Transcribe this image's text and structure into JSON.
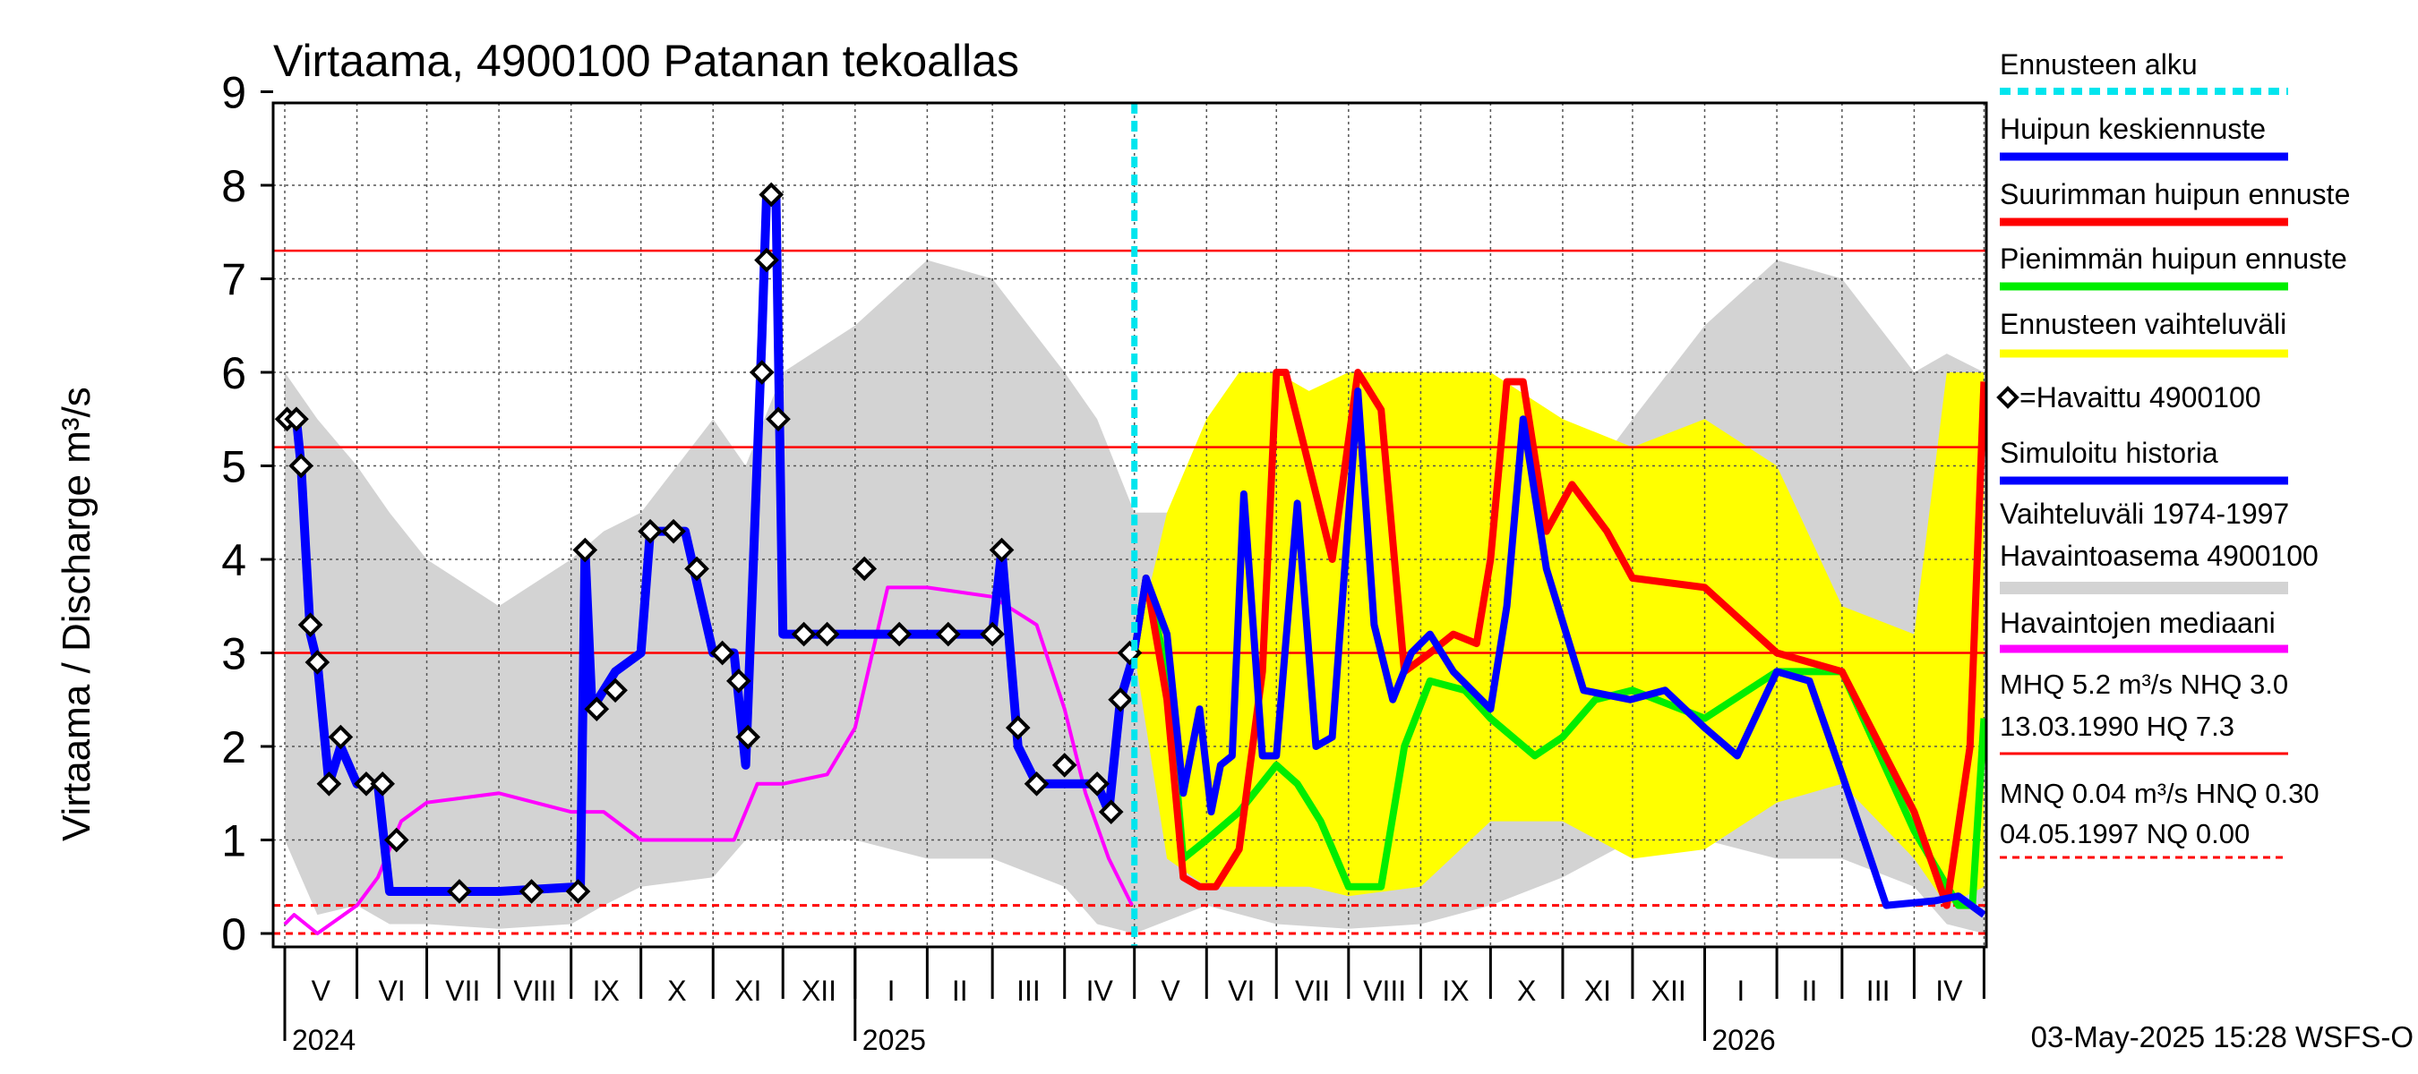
{
  "chart_data": {
    "type": "line",
    "title": "Virtaama, 4900100 Patanan tekoallas",
    "ylabel": "Virtaama / Discharge    m³/s",
    "ylim": [
      0,
      9
    ],
    "yticks": [
      "0",
      "1",
      "2",
      "3",
      "4",
      "5",
      "6",
      "7",
      "8",
      "9"
    ],
    "months": [
      "V",
      "VI",
      "VII",
      "VIII",
      "IX",
      "X",
      "XI",
      "XII",
      "I",
      "II",
      "III",
      "IV",
      "V",
      "VI",
      "VII",
      "VIII",
      "IX",
      "X",
      "XI",
      "XII",
      "I",
      "II",
      "III",
      "IV"
    ],
    "years": [
      "2024",
      "2025",
      "2026"
    ],
    "footer": "03-May-2025 15:28 WSFS-O",
    "forecast_start": "2025-05-01",
    "reference_lines": [
      {
        "name": "MHQ",
        "value": 5.2,
        "style": "solid"
      },
      {
        "name": "NHQ",
        "value": 3.0,
        "style": "solid"
      },
      {
        "name": "HQ",
        "value": 7.3,
        "style": "solid"
      },
      {
        "name": "HNQ",
        "value": 0.3,
        "style": "dashed"
      },
      {
        "name": "NQ",
        "value": 0.0,
        "style": "dashed"
      }
    ],
    "legend": [
      {
        "label": "Ennusteen alku",
        "color": "#00e5ee",
        "style": "dashed"
      },
      {
        "label": "Huipun keskiennuste",
        "color": "#0000ff",
        "style": "solid"
      },
      {
        "label": "Suurimman huipun ennuste",
        "color": "#ff0000",
        "style": "solid"
      },
      {
        "label": "Pienimmän huipun ennuste",
        "color": "#00ee00",
        "style": "solid"
      },
      {
        "label": "Ennusteen vaihteluväli",
        "color": "#ffff00",
        "style": "solid"
      },
      {
        "label": "=Havaittu 4900100",
        "color": "#000000",
        "style": "marker"
      },
      {
        "label": "Simuloitu historia",
        "color": "#0000ff",
        "style": "solid"
      },
      {
        "label": "Vaihteluväli 1974-1997",
        "color": "#d3d3d3",
        "style": "text"
      },
      {
        "label": " Havaintoasema 4900100",
        "color": "#d3d3d3",
        "style": "band"
      },
      {
        "label": "Havaintojen mediaani",
        "color": "#ff00ff",
        "style": "solid"
      }
    ],
    "stats_lines": [
      "MHQ  5.2 m³/s NHQ  3.0",
      "13.03.1990 HQ  7.3",
      "MNQ 0.04 m³/s HNQ 0.30",
      "04.05.1997 NQ 0.00"
    ],
    "series": [
      {
        "name": "Simuloitu historia",
        "color": "#0000ff",
        "x": [
          "2024-05-01",
          "2024-05-06",
          "2024-05-08",
          "2024-05-10",
          "2024-05-12",
          "2024-05-15",
          "2024-05-20",
          "2024-05-25",
          "2024-06-01",
          "2024-06-10",
          "2024-06-15",
          "2024-07-01",
          "2024-08-01",
          "2024-09-05",
          "2024-09-07",
          "2024-09-10",
          "2024-09-20",
          "2024-10-01",
          "2024-10-05",
          "2024-10-20",
          "2024-11-01",
          "2024-11-10",
          "2024-11-15",
          "2024-11-22",
          "2024-11-24",
          "2024-11-28",
          "2024-12-01",
          "2024-12-15",
          "2025-01-01",
          "2025-01-15",
          "2025-02-01",
          "2025-03-01",
          "2025-03-05",
          "2025-03-12",
          "2025-03-20",
          "2025-04-01",
          "2025-04-15",
          "2025-04-20",
          "2025-04-25",
          "2025-05-01"
        ],
        "y": [
          5.5,
          5.5,
          5.0,
          4.1,
          3.2,
          2.9,
          1.6,
          2.0,
          1.6,
          1.6,
          0.45,
          0.45,
          0.45,
          0.5,
          4.1,
          2.4,
          2.8,
          3.0,
          4.3,
          4.3,
          3.0,
          3.0,
          1.8,
          6.4,
          7.9,
          7.9,
          3.2,
          3.2,
          3.2,
          3.2,
          3.2,
          3.2,
          4.1,
          2.0,
          1.6,
          1.6,
          1.6,
          1.3,
          2.5,
          3.0
        ]
      },
      {
        "name": "Havaittu 4900100",
        "color": "#000000",
        "x": [
          "2024-05-02",
          "2024-05-06",
          "2024-05-08",
          "2024-05-12",
          "2024-05-15",
          "2024-05-20",
          "2024-05-25",
          "2024-06-05",
          "2024-06-12",
          "2024-06-18",
          "2024-07-15",
          "2024-08-15",
          "2024-09-04",
          "2024-09-07",
          "2024-09-12",
          "2024-09-20",
          "2024-10-05",
          "2024-10-15",
          "2024-10-25",
          "2024-11-05",
          "2024-11-12",
          "2024-11-16",
          "2024-11-22",
          "2024-11-24",
          "2024-11-26",
          "2024-11-29",
          "2024-12-10",
          "2024-12-20",
          "2025-01-05",
          "2025-01-20",
          "2025-02-10",
          "2025-03-01",
          "2025-03-05",
          "2025-03-12",
          "2025-03-20",
          "2025-04-01",
          "2025-04-15",
          "2025-04-21",
          "2025-04-25",
          "2025-04-29"
        ],
        "y": [
          5.5,
          5.5,
          5.0,
          3.3,
          2.9,
          1.6,
          2.1,
          1.6,
          1.6,
          1.0,
          0.45,
          0.45,
          0.45,
          4.1,
          2.4,
          2.6,
          4.3,
          4.3,
          3.9,
          3.0,
          2.7,
          2.1,
          6.0,
          7.2,
          7.9,
          5.5,
          3.2,
          3.2,
          3.9,
          3.2,
          3.2,
          3.2,
          4.1,
          2.2,
          1.6,
          1.8,
          1.6,
          1.3,
          2.5,
          3.0
        ]
      },
      {
        "name": "Havaintojen mediaani",
        "color": "#ff00ff",
        "x": [
          "2024-05-01",
          "2024-05-05",
          "2024-05-15",
          "2024-06-01",
          "2024-06-10",
          "2024-06-20",
          "2024-07-01",
          "2024-08-01",
          "2024-09-01",
          "2024-09-15",
          "2024-10-01",
          "2024-10-20",
          "2024-11-10",
          "2024-11-20",
          "2024-12-01",
          "2024-12-20",
          "2025-01-01",
          "2025-01-15",
          "2025-02-01",
          "2025-03-01",
          "2025-03-20",
          "2025-04-01",
          "2025-04-10",
          "2025-04-20",
          "2025-04-30"
        ],
        "y": [
          0.1,
          0.2,
          0.0,
          0.3,
          0.6,
          1.2,
          1.4,
          1.5,
          1.3,
          1.3,
          1.0,
          1.0,
          1.0,
          1.6,
          1.6,
          1.7,
          2.2,
          3.7,
          3.7,
          3.6,
          3.3,
          2.4,
          1.5,
          0.8,
          0.3
        ]
      },
      {
        "name": "Huipun keskiennuste",
        "color": "#0000ff",
        "x": [
          "2025-05-01",
          "2025-05-06",
          "2025-05-15",
          "2025-05-22",
          "2025-05-29",
          "2025-06-03",
          "2025-06-07",
          "2025-06-12",
          "2025-06-17",
          "2025-06-25",
          "2025-07-01",
          "2025-07-10",
          "2025-07-18",
          "2025-07-25",
          "2025-08-05",
          "2025-08-12",
          "2025-08-20",
          "2025-08-28",
          "2025-09-05",
          "2025-09-15",
          "2025-10-01",
          "2025-10-08",
          "2025-10-15",
          "2025-10-25",
          "2025-11-10",
          "2025-11-30",
          "2025-12-15",
          "2026-01-01",
          "2026-01-15",
          "2026-02-01",
          "2026-02-15",
          "2026-03-01",
          "2026-03-20",
          "2026-04-10",
          "2026-04-20",
          "2026-05-01"
        ],
        "y": [
          3.0,
          3.8,
          3.2,
          1.5,
          2.4,
          1.3,
          1.8,
          1.9,
          4.7,
          1.9,
          1.9,
          4.6,
          2.0,
          2.1,
          5.8,
          3.3,
          2.5,
          3.0,
          3.2,
          2.8,
          2.4,
          3.5,
          5.5,
          3.9,
          2.6,
          2.5,
          2.6,
          2.2,
          1.9,
          2.8,
          2.7,
          1.7,
          0.3,
          0.35,
          0.4,
          0.2
        ]
      },
      {
        "name": "Suurimman huipun ennuste",
        "color": "#ff0000",
        "x": [
          "2025-05-01",
          "2025-05-06",
          "2025-05-15",
          "2025-05-22",
          "2025-05-29",
          "2025-06-05",
          "2025-06-15",
          "2025-06-25",
          "2025-07-01",
          "2025-07-05",
          "2025-07-15",
          "2025-07-25",
          "2025-08-05",
          "2025-08-15",
          "2025-08-25",
          "2025-09-05",
          "2025-09-15",
          "2025-09-25",
          "2025-10-01",
          "2025-10-08",
          "2025-10-15",
          "2025-10-25",
          "2025-11-05",
          "2025-11-20",
          "2025-12-01",
          "2026-01-01",
          "2026-02-01",
          "2026-03-01",
          "2026-04-01",
          "2026-04-15",
          "2026-04-25",
          "2026-05-01"
        ],
        "y": [
          3.0,
          3.8,
          2.5,
          0.6,
          0.5,
          0.5,
          0.9,
          2.8,
          6.0,
          6.0,
          5.0,
          4.0,
          6.0,
          5.6,
          2.8,
          3.0,
          3.2,
          3.1,
          4.0,
          5.9,
          5.9,
          4.3,
          4.8,
          4.3,
          3.8,
          3.7,
          3.0,
          2.8,
          1.3,
          0.3,
          2.0,
          5.9
        ]
      },
      {
        "name": "Pienimmän huipun ennuste",
        "color": "#00ee00",
        "x": [
          "2025-05-01",
          "2025-05-06",
          "2025-05-15",
          "2025-05-22",
          "2025-06-01",
          "2025-06-15",
          "2025-07-01",
          "2025-07-10",
          "2025-07-20",
          "2025-08-01",
          "2025-08-15",
          "2025-08-25",
          "2025-09-05",
          "2025-09-20",
          "2025-10-01",
          "2025-10-20",
          "2025-11-01",
          "2025-11-15",
          "2025-12-01",
          "2026-01-01",
          "2026-02-01",
          "2026-03-01",
          "2026-04-01",
          "2026-04-20",
          "2026-04-26",
          "2026-05-01"
        ],
        "y": [
          3.0,
          3.8,
          2.8,
          0.8,
          1.0,
          1.3,
          1.8,
          1.6,
          1.2,
          0.5,
          0.5,
          2.0,
          2.7,
          2.6,
          2.3,
          1.9,
          2.1,
          2.5,
          2.6,
          2.3,
          2.8,
          2.8,
          1.1,
          0.3,
          0.3,
          2.3
        ]
      }
    ],
    "bands": [
      {
        "name": "Vaihteluväli 1974-1997",
        "color": "#d3d3d3",
        "x": [
          "2024-05-01",
          "2024-05-15",
          "2024-06-01",
          "2024-06-15",
          "2024-07-01",
          "2024-08-01",
          "2024-09-01",
          "2024-09-15",
          "2024-10-01",
          "2024-11-01",
          "2024-11-15",
          "2024-12-01",
          "2025-01-01",
          "2025-02-01",
          "2025-03-01",
          "2025-04-01",
          "2025-04-15",
          "2025-05-01",
          "2025-06-01",
          "2025-07-01",
          "2025-08-01",
          "2025-09-01",
          "2025-10-01",
          "2025-11-01",
          "2025-12-01",
          "2026-01-01",
          "2026-02-01",
          "2026-03-01",
          "2026-04-01",
          "2026-04-15",
          "2026-05-01"
        ],
        "low": [
          1.0,
          0.2,
          0.3,
          0.1,
          0.1,
          0.05,
          0.1,
          0.3,
          0.5,
          0.6,
          1.0,
          1.0,
          1.0,
          0.8,
          0.8,
          0.5,
          0.1,
          0.0,
          0.3,
          0.1,
          0.05,
          0.1,
          0.3,
          0.6,
          1.0,
          1.0,
          0.8,
          0.8,
          0.5,
          0.1,
          0.0
        ],
        "high": [
          6.0,
          5.5,
          5.0,
          4.5,
          4.0,
          3.5,
          4.0,
          4.3,
          4.5,
          5.5,
          5.0,
          6.0,
          6.5,
          7.2,
          7.0,
          6.0,
          5.5,
          4.5,
          4.5,
          4.0,
          3.5,
          4.0,
          4.3,
          4.5,
          5.5,
          6.5,
          7.2,
          7.0,
          6.0,
          6.2,
          6.0
        ]
      },
      {
        "name": "Ennusteen vaihteluväli",
        "color": "#ffff00",
        "x": [
          "2025-05-01",
          "2025-05-15",
          "2025-06-01",
          "2025-06-15",
          "2025-07-01",
          "2025-07-15",
          "2025-08-01",
          "2025-09-01",
          "2025-10-01",
          "2025-11-01",
          "2025-12-01",
          "2026-01-01",
          "2026-02-01",
          "2026-03-01",
          "2026-04-01",
          "2026-04-15",
          "2026-05-01"
        ],
        "low": [
          3.0,
          0.8,
          0.5,
          0.5,
          0.5,
          0.5,
          0.4,
          0.5,
          1.2,
          1.2,
          0.8,
          0.9,
          1.4,
          1.6,
          0.8,
          0.3,
          0.5
        ],
        "high": [
          3.0,
          4.5,
          5.5,
          6.0,
          6.0,
          5.8,
          6.0,
          6.0,
          6.0,
          5.5,
          5.2,
          5.5,
          5.0,
          3.5,
          3.2,
          6.0,
          6.0
        ]
      }
    ]
  }
}
